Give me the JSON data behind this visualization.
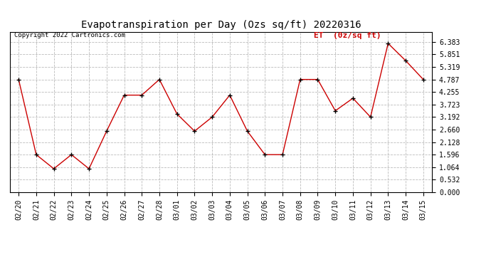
{
  "title": "Evapotranspiration per Day (Ozs sq/ft) 20220316",
  "copyright": "Copyright 2022 Cartronics.com",
  "legend_label": "ET  (0z/sq ft)",
  "dates": [
    "02/20",
    "02/21",
    "02/22",
    "02/23",
    "02/24",
    "02/25",
    "02/26",
    "02/27",
    "02/28",
    "03/01",
    "03/02",
    "03/03",
    "03/04",
    "03/05",
    "03/06",
    "03/07",
    "03/08",
    "03/09",
    "03/10",
    "03/11",
    "03/12",
    "03/13",
    "03/14",
    "03/15"
  ],
  "values": [
    4.787,
    1.596,
    0.998,
    1.596,
    0.998,
    2.594,
    4.122,
    4.122,
    4.787,
    3.325,
    2.594,
    3.192,
    4.122,
    2.594,
    1.596,
    1.596,
    4.787,
    4.787,
    3.458,
    3.99,
    3.192,
    6.317,
    5.585,
    4.787
  ],
  "line_color": "#cc0000",
  "marker_color": "#000000",
  "grid_color": "#aaaaaa",
  "bg_color": "#ffffff",
  "plot_bg_color": "#ffffff",
  "yticks": [
    0.0,
    0.532,
    1.064,
    1.596,
    2.128,
    2.66,
    3.192,
    3.723,
    4.255,
    4.787,
    5.319,
    5.851,
    6.383
  ],
  "ylim": [
    0.0,
    6.8
  ],
  "title_fontsize": 10,
  "tick_fontsize": 7,
  "copyright_fontsize": 6.5,
  "legend_fontsize": 8
}
